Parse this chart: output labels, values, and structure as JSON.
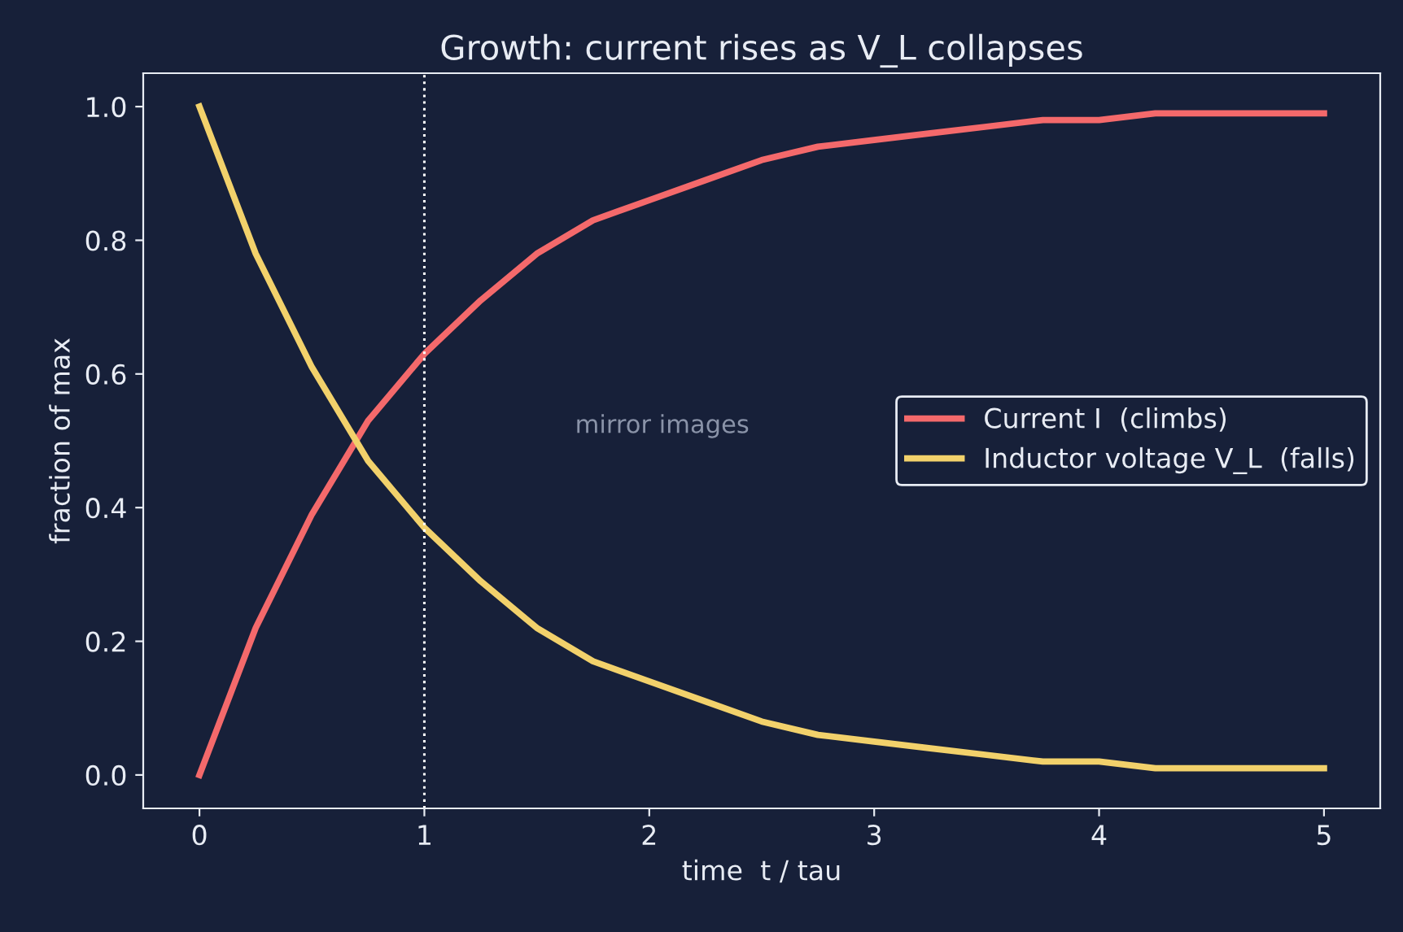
{
  "chart_data": {
    "type": "line",
    "title": "Growth: current rises as V_L collapses",
    "xlabel": "time  t / tau",
    "ylabel": "fraction of max",
    "x": [
      0,
      0.25,
      0.5,
      0.75,
      1,
      1.25,
      1.5,
      1.75,
      2,
      2.25,
      2.5,
      2.75,
      3,
      3.25,
      3.5,
      3.75,
      4,
      4.25,
      4.5,
      4.75,
      5
    ],
    "series": [
      {
        "name": "Current I  (climbs)",
        "color": "#f4696b",
        "values": [
          0,
          0.22,
          0.39,
          0.53,
          0.63,
          0.71,
          0.78,
          0.83,
          0.86,
          0.89,
          0.92,
          0.94,
          0.95,
          0.96,
          0.97,
          0.98,
          0.98,
          0.99,
          0.99,
          0.99,
          0.99
        ]
      },
      {
        "name": "Inductor voltage V_L  (falls)",
        "color": "#f2d16b",
        "values": [
          1,
          0.78,
          0.61,
          0.47,
          0.37,
          0.29,
          0.22,
          0.17,
          0.14,
          0.11,
          0.08,
          0.06,
          0.05,
          0.04,
          0.03,
          0.02,
          0.02,
          0.01,
          0.01,
          0.01,
          0.01
        ]
      }
    ],
    "xlim": [
      -0.25,
      5.25
    ],
    "ylim": [
      -0.05,
      1.05
    ],
    "xticks": [
      0,
      1,
      2,
      3,
      4,
      5
    ],
    "yticks": [
      {
        "value": 0,
        "label": "0.0"
      },
      0.2,
      0.4,
      0.6,
      0.8,
      {
        "value": 1,
        "label": "1.0"
      }
    ],
    "ref_lines": [
      {
        "axis": "x",
        "value": 1,
        "label": null,
        "color": "#ffffff",
        "line_style": "dotted"
      }
    ],
    "annotations": [
      "mirror images"
    ],
    "legend": "right",
    "grid": false,
    "marker": "none",
    "line_style": "solid"
  }
}
